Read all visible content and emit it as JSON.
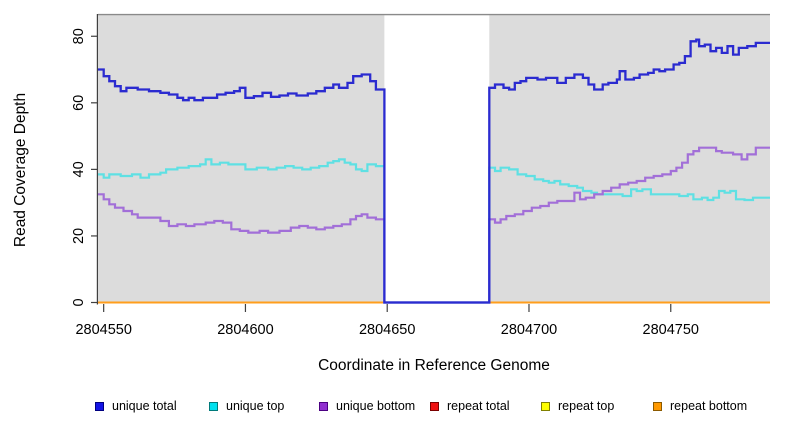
{
  "chart_data": {
    "type": "line",
    "subtype": "step-coverage-plot",
    "title": "",
    "xlabel": "Coordinate in Reference Genome",
    "ylabel": "Read Coverage Depth",
    "xlim": [
      2804548,
      2804785
    ],
    "ylim": [
      0,
      82
    ],
    "grid": "off",
    "plot_bg": "#dcdcdc",
    "frame_color": "#8a8a8a",
    "axis_color": "#404040",
    "gap_region": {
      "x_start": 2804649,
      "x_end": 2804686,
      "fill": "#ffffff"
    },
    "x_ticks": {
      "values": [
        2804550,
        2804600,
        2804650,
        2804700,
        2804750
      ],
      "labels": [
        "2804550",
        "2804600",
        "2804650",
        "2804700",
        "2804750"
      ]
    },
    "y_ticks": {
      "values": [
        0,
        20,
        40,
        60,
        80
      ],
      "labels": [
        "0",
        "20",
        "40",
        "60",
        "80"
      ]
    },
    "legend_position": "bottom",
    "draw_order": [
      3,
      4,
      5,
      1,
      2,
      0
    ],
    "series": [
      {
        "name": "unique total",
        "color": "#2b2bd0",
        "legend_fill": "#1414e6",
        "legend_border": "#000080",
        "points": [
          [
            2804548,
            70
          ],
          [
            2804550,
            68
          ],
          [
            2804552,
            66.5
          ],
          [
            2804554,
            65
          ],
          [
            2804556,
            63.5
          ],
          [
            2804558,
            64.5
          ],
          [
            2804562,
            64
          ],
          [
            2804566,
            63.5
          ],
          [
            2804570,
            63
          ],
          [
            2804573,
            62.5
          ],
          [
            2804576,
            61.5
          ],
          [
            2804578,
            60.8
          ],
          [
            2804580,
            61.5
          ],
          [
            2804582,
            60.8
          ],
          [
            2804585,
            61.5
          ],
          [
            2804590,
            62.5
          ],
          [
            2804593,
            63
          ],
          [
            2804596,
            63.5
          ],
          [
            2804598,
            64.5
          ],
          [
            2804600,
            61.5
          ],
          [
            2804603,
            62
          ],
          [
            2804606,
            63
          ],
          [
            2804609,
            61.8
          ],
          [
            2804612,
            62.2
          ],
          [
            2804615,
            62.8
          ],
          [
            2804618,
            62.2
          ],
          [
            2804622,
            62.8
          ],
          [
            2804625,
            63.5
          ],
          [
            2804628,
            64.5
          ],
          [
            2804631,
            65.5
          ],
          [
            2804633,
            64.5
          ],
          [
            2804636,
            66
          ],
          [
            2804638,
            68
          ],
          [
            2804641,
            68.5
          ],
          [
            2804644,
            66.5
          ],
          [
            2804646,
            64
          ],
          [
            2804649,
            0
          ],
          [
            2804686,
            64.5
          ],
          [
            2804688,
            65.5
          ],
          [
            2804691,
            64.5
          ],
          [
            2804693,
            64
          ],
          [
            2804695,
            66
          ],
          [
            2804697,
            66.5
          ],
          [
            2804699,
            67.5
          ],
          [
            2804703,
            67
          ],
          [
            2804706,
            67.5
          ],
          [
            2804710,
            66
          ],
          [
            2804713,
            67.5
          ],
          [
            2804716,
            68.5
          ],
          [
            2804719,
            67.5
          ],
          [
            2804721,
            65.5
          ],
          [
            2804723,
            64
          ],
          [
            2804726,
            65.5
          ],
          [
            2804728,
            66
          ],
          [
            2804731,
            67
          ],
          [
            2804732,
            69.5
          ],
          [
            2804734,
            67
          ],
          [
            2804737,
            67.5
          ],
          [
            2804739,
            68.5
          ],
          [
            2804742,
            69
          ],
          [
            2804744,
            70
          ],
          [
            2804746,
            69.5
          ],
          [
            2804748,
            70
          ],
          [
            2804751,
            71.5
          ],
          [
            2804753,
            72
          ],
          [
            2804755,
            74
          ],
          [
            2804757,
            78.5
          ],
          [
            2804759,
            79
          ],
          [
            2804760,
            77
          ],
          [
            2804762,
            77.5
          ],
          [
            2804764,
            75.5
          ],
          [
            2804766,
            76.5
          ],
          [
            2804768,
            75
          ],
          [
            2804770,
            77
          ],
          [
            2804772,
            74.5
          ],
          [
            2804774,
            76.5
          ],
          [
            2804777,
            77
          ],
          [
            2804780,
            78
          ],
          [
            2804785,
            78
          ]
        ]
      },
      {
        "name": "unique top",
        "color": "#5fe0e3",
        "legend_fill": "#00e0ee",
        "legend_border": "#007a7a",
        "points": [
          [
            2804548,
            38.5
          ],
          [
            2804550,
            37.5
          ],
          [
            2804552,
            38.5
          ],
          [
            2804556,
            38
          ],
          [
            2804560,
            38.5
          ],
          [
            2804563,
            37.5
          ],
          [
            2804566,
            38.5
          ],
          [
            2804570,
            39
          ],
          [
            2804572,
            40
          ],
          [
            2804576,
            40.5
          ],
          [
            2804580,
            41
          ],
          [
            2804584,
            41.5
          ],
          [
            2804586,
            43
          ],
          [
            2804588,
            41.5
          ],
          [
            2804591,
            42
          ],
          [
            2804594,
            41.5
          ],
          [
            2804600,
            40
          ],
          [
            2804604,
            40.5
          ],
          [
            2804608,
            40
          ],
          [
            2804611,
            40.5
          ],
          [
            2804614,
            41
          ],
          [
            2804617,
            40.5
          ],
          [
            2804620,
            40
          ],
          [
            2804623,
            40.5
          ],
          [
            2804626,
            41
          ],
          [
            2804629,
            42
          ],
          [
            2804631,
            42.5
          ],
          [
            2804633,
            43
          ],
          [
            2804635,
            42
          ],
          [
            2804637,
            41.5
          ],
          [
            2804639,
            40
          ],
          [
            2804641,
            39.5
          ],
          [
            2804643,
            41.5
          ],
          [
            2804646,
            41
          ],
          [
            2804649,
            0
          ],
          [
            2804686,
            40.5
          ],
          [
            2804688,
            39.5
          ],
          [
            2804690,
            40.5
          ],
          [
            2804693,
            40
          ],
          [
            2804696,
            38.5
          ],
          [
            2804699,
            38
          ],
          [
            2804702,
            37
          ],
          [
            2804705,
            36.5
          ],
          [
            2804707,
            36
          ],
          [
            2804709,
            36.5
          ],
          [
            2804711,
            35.5
          ],
          [
            2804714,
            35
          ],
          [
            2804717,
            34.5
          ],
          [
            2804719,
            33.5
          ],
          [
            2804722,
            33
          ],
          [
            2804724,
            32.5
          ],
          [
            2804730,
            32.5
          ],
          [
            2804733,
            32
          ],
          [
            2804736,
            34
          ],
          [
            2804738,
            33.5
          ],
          [
            2804740,
            34
          ],
          [
            2804743,
            32.5
          ],
          [
            2804750,
            32.5
          ],
          [
            2804753,
            32
          ],
          [
            2804756,
            32.5
          ],
          [
            2804758,
            31
          ],
          [
            2804761,
            31.5
          ],
          [
            2804763,
            30.8
          ],
          [
            2804765,
            31.5
          ],
          [
            2804767,
            33.5
          ],
          [
            2804769,
            33
          ],
          [
            2804771,
            33.5
          ],
          [
            2804773,
            31
          ],
          [
            2804776,
            30.8
          ],
          [
            2804779,
            31.5
          ],
          [
            2804785,
            31.5
          ]
        ]
      },
      {
        "name": "unique bottom",
        "color": "#a26fd8",
        "legend_fill": "#9130d0",
        "legend_border": "#4b0082",
        "points": [
          [
            2804548,
            32.5
          ],
          [
            2804550,
            31
          ],
          [
            2804552,
            29.5
          ],
          [
            2804554,
            28.5
          ],
          [
            2804557,
            27.5
          ],
          [
            2804560,
            26.5
          ],
          [
            2804562,
            25.5
          ],
          [
            2804567,
            25.5
          ],
          [
            2804570,
            24.5
          ],
          [
            2804573,
            23
          ],
          [
            2804576,
            23.5
          ],
          [
            2804579,
            23
          ],
          [
            2804582,
            23.5
          ],
          [
            2804586,
            24
          ],
          [
            2804589,
            24.5
          ],
          [
            2804592,
            24
          ],
          [
            2804595,
            22
          ],
          [
            2804598,
            21.5
          ],
          [
            2804601,
            21
          ],
          [
            2804605,
            21.5
          ],
          [
            2804608,
            21
          ],
          [
            2804612,
            21.5
          ],
          [
            2804616,
            22.5
          ],
          [
            2804619,
            23
          ],
          [
            2804622,
            22.5
          ],
          [
            2804625,
            22
          ],
          [
            2804628,
            22.5
          ],
          [
            2804631,
            23
          ],
          [
            2804634,
            23.5
          ],
          [
            2804637,
            25
          ],
          [
            2804639,
            26
          ],
          [
            2804641,
            26.5
          ],
          [
            2804643,
            25.5
          ],
          [
            2804646,
            25
          ],
          [
            2804649,
            0
          ],
          [
            2804686,
            25
          ],
          [
            2804688,
            24
          ],
          [
            2804690,
            25
          ],
          [
            2804692,
            26
          ],
          [
            2804695,
            26.5
          ],
          [
            2804698,
            27.5
          ],
          [
            2804701,
            28.5
          ],
          [
            2804704,
            29
          ],
          [
            2804707,
            30
          ],
          [
            2804710,
            30.5
          ],
          [
            2804714,
            30.5
          ],
          [
            2804716,
            33
          ],
          [
            2804718,
            31
          ],
          [
            2804720,
            31.5
          ],
          [
            2804723,
            32.5
          ],
          [
            2804726,
            33.5
          ],
          [
            2804729,
            34.5
          ],
          [
            2804732,
            35.5
          ],
          [
            2804735,
            36
          ],
          [
            2804738,
            36.5
          ],
          [
            2804741,
            37.5
          ],
          [
            2804744,
            38
          ],
          [
            2804747,
            38.5
          ],
          [
            2804750,
            39.5
          ],
          [
            2804752,
            40.5
          ],
          [
            2804754,
            42
          ],
          [
            2804756,
            44.5
          ],
          [
            2804758,
            45.5
          ],
          [
            2804760,
            46.5
          ],
          [
            2804764,
            46.5
          ],
          [
            2804766,
            45.5
          ],
          [
            2804768,
            45
          ],
          [
            2804772,
            44.5
          ],
          [
            2804775,
            43
          ],
          [
            2804777,
            44.5
          ],
          [
            2804780,
            46.5
          ],
          [
            2804785,
            46.5
          ]
        ]
      },
      {
        "name": "repeat total",
        "color": "#dd0000",
        "legend_fill": "#ee1111",
        "legend_border": "#7a0000",
        "points": [
          [
            2804548,
            0
          ],
          [
            2804649,
            0
          ],
          null,
          [
            2804686,
            0
          ],
          [
            2804785,
            0
          ]
        ]
      },
      {
        "name": "repeat top",
        "color": "#ffee00",
        "legend_fill": "#ffff00",
        "legend_border": "#808000",
        "points": [
          [
            2804548,
            0
          ],
          [
            2804649,
            0
          ],
          null,
          [
            2804686,
            0
          ],
          [
            2804785,
            0
          ]
        ]
      },
      {
        "name": "repeat bottom",
        "color": "#ff9e1c",
        "legend_fill": "#ff9900",
        "legend_border": "#8b5a00",
        "points": [
          [
            2804548,
            0
          ],
          [
            2804649,
            0
          ],
          null,
          [
            2804686,
            0
          ],
          [
            2804785,
            0
          ]
        ]
      }
    ]
  }
}
